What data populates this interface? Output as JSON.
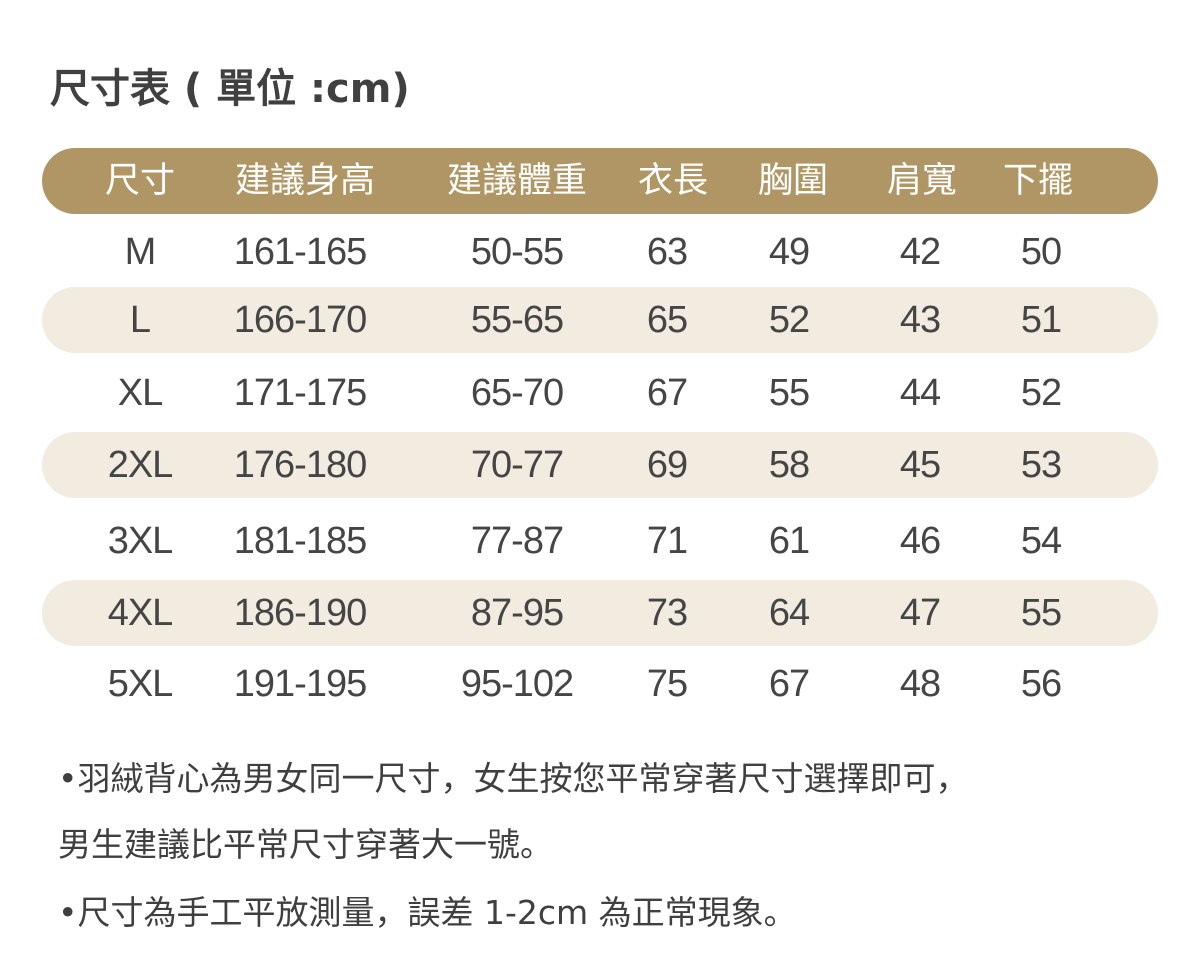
{
  "title": "尺寸表 ( 單位 :cm)",
  "colors": {
    "header_bg": "#b09664",
    "stripe_bg": "#f1ebe0",
    "text": "#444444"
  },
  "table": {
    "headers": [
      "尺寸",
      "建議身高",
      "建議體重",
      "衣長",
      "胸圍",
      "肩寬",
      "下擺"
    ],
    "rows": [
      [
        "M",
        "161-165",
        "50-55",
        "63",
        "49",
        "42",
        "50"
      ],
      [
        "L",
        "166-170",
        "55-65",
        "65",
        "52",
        "43",
        "51"
      ],
      [
        "XL",
        "171-175",
        "65-70",
        "67",
        "55",
        "44",
        "52"
      ],
      [
        "2XL",
        "176-180",
        "70-77",
        "69",
        "58",
        "45",
        "53"
      ],
      [
        "3XL",
        "181-185",
        "77-87",
        "71",
        "61",
        "46",
        "54"
      ],
      [
        "4XL",
        "186-190",
        "87-95",
        "73",
        "64",
        "47",
        "55"
      ],
      [
        "5XL",
        "191-195",
        "95-102",
        "75",
        "67",
        "48",
        "56"
      ]
    ]
  },
  "notes": [
    "•羽絨背心為男女同一尺寸，女生按您平常穿著尺寸選擇即可，",
    " 男生建議比平常尺寸穿著大一號。",
    "•尺寸為手工平放測量，誤差 1-2cm 為正常現象。"
  ]
}
